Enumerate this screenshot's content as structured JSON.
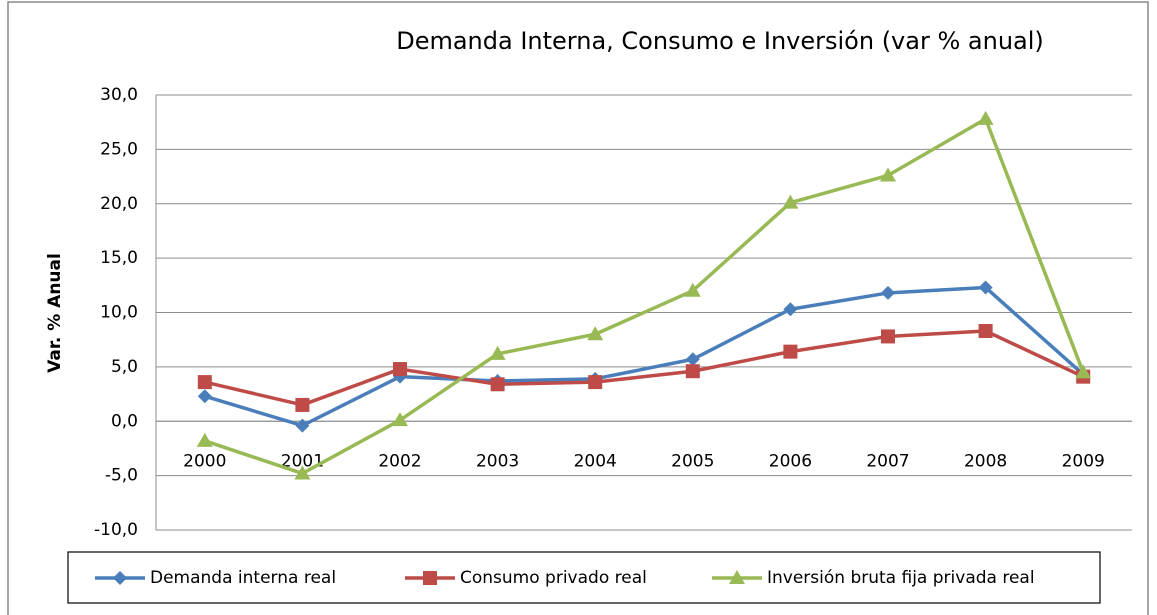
{
  "chart_data": {
    "type": "line",
    "title": "Demanda Interna, Consumo e Inversión (var % anual)",
    "y_label": "Var. % Anual",
    "categories": [
      "2000",
      "2001",
      "2002",
      "2003",
      "2004",
      "2005",
      "2006",
      "2007",
      "2008",
      "2009"
    ],
    "series": [
      {
        "name": "Demanda interna real",
        "color": "#4a7ebb",
        "marker": "diamond",
        "values": [
          2.3,
          -0.4,
          4.1,
          3.7,
          3.9,
          5.7,
          10.3,
          11.8,
          12.3,
          4.3
        ]
      },
      {
        "name": "Consumo privado real",
        "color": "#be4b48",
        "marker": "square",
        "values": [
          3.6,
          1.5,
          4.8,
          3.4,
          3.6,
          4.6,
          6.4,
          7.8,
          8.3,
          4.1
        ]
      },
      {
        "name": "Inversión bruta fija privada real",
        "color": "#98b954",
        "marker": "triangle",
        "values": [
          -1.8,
          -4.8,
          0.1,
          6.2,
          8.0,
          12.0,
          20.1,
          22.6,
          27.8,
          4.5
        ]
      }
    ],
    "ylim": [
      -10,
      30
    ],
    "yticks": [
      {
        "value": -10,
        "label": "-10,0"
      },
      {
        "value": -5,
        "label": "-5,0"
      },
      {
        "value": 0,
        "label": "0,0"
      },
      {
        "value": 5,
        "label": "5,0"
      },
      {
        "value": 10,
        "label": "10,0"
      },
      {
        "value": 15,
        "label": "15,0"
      },
      {
        "value": 20,
        "label": "20,0"
      },
      {
        "value": 25,
        "label": "25,0"
      },
      {
        "value": 30,
        "label": "30,0"
      }
    ],
    "grid": true,
    "legend": "bottom"
  }
}
